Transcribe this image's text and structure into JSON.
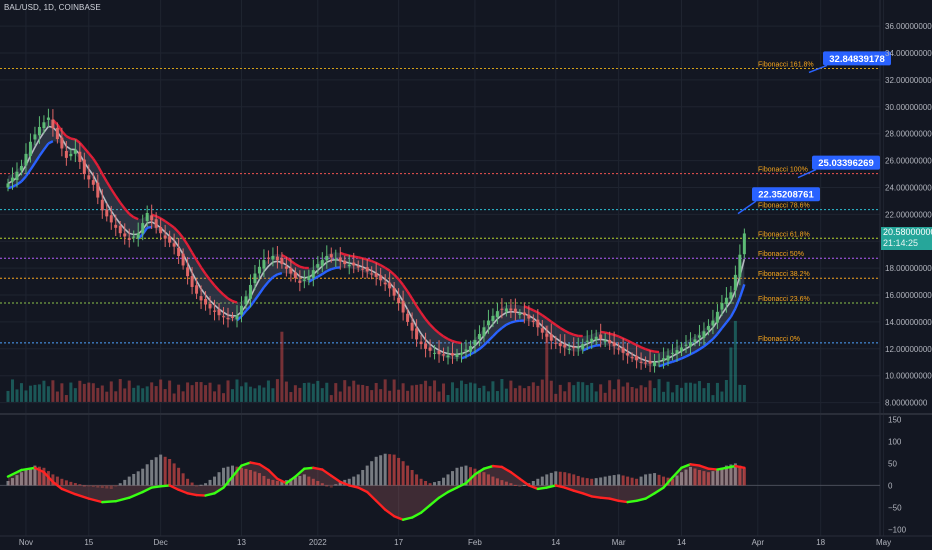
{
  "header": {
    "symbol": "BAL/USD, 1D, COINBASE"
  },
  "colors": {
    "background": "#131722",
    "grid": "#1f2430",
    "axis_text": "#b2b5be",
    "bull": "#26a69a",
    "bear": "#ef5350",
    "green_candle": "#5dbb75",
    "red_candle": "#e06666",
    "ribbon_red": "#e01e37",
    "ribbon_blue": "#2962ff",
    "ribbon_white": "#cfd2d8",
    "fib_label": "#f7a51c",
    "callout": "#2962ff",
    "osc_green": "#39ff14",
    "osc_red": "#ff2222",
    "hist_grey": "#8a8d93"
  },
  "current_price": {
    "value": "20.58000000",
    "countdown": "21:14:25"
  },
  "chart_data": [
    {
      "type": "candlestick",
      "y_axis": {
        "ylim": [
          7.3,
          37.2
        ],
        "ticks": [
          "36.00000000",
          "34.00000000",
          "32.00000000",
          "30.00000000",
          "28.00000000",
          "26.00000000",
          "24.00000000",
          "22.00000000",
          "20.00000000",
          "18.00000000",
          "16.00000000",
          "14.00000000",
          "12.00000000",
          "10.00000000",
          "8.00000000"
        ],
        "tick_values": [
          36,
          34,
          32,
          30,
          28,
          26,
          24,
          22,
          20,
          18,
          16,
          14,
          12,
          10,
          8
        ]
      },
      "x_axis": {
        "labels": [
          "Nov",
          "15",
          "Dec",
          "13",
          "2022",
          "17",
          "Feb",
          "14",
          "Mar",
          "14",
          "Apr",
          "18",
          "May"
        ],
        "label_days": [
          4,
          18,
          34,
          52,
          69,
          87,
          104,
          122,
          136,
          150,
          167,
          181,
          195
        ],
        "data_days": [
          0,
          164
        ]
      },
      "close_path": [
        [
          0,
          24.3
        ],
        [
          3,
          25.6
        ],
        [
          5,
          27.4
        ],
        [
          7,
          28.5
        ],
        [
          9,
          29.2
        ],
        [
          11,
          27.6
        ],
        [
          13,
          26.2
        ],
        [
          15,
          26.8
        ],
        [
          17,
          25.0
        ],
        [
          19,
          24.2
        ],
        [
          21,
          22.3
        ],
        [
          23,
          21.4
        ],
        [
          25,
          20.6
        ],
        [
          27,
          20.1
        ],
        [
          29,
          20.6
        ],
        [
          31,
          22.1
        ],
        [
          33,
          21.0
        ],
        [
          35,
          20.2
        ],
        [
          37,
          19.6
        ],
        [
          39,
          18.2
        ],
        [
          41,
          16.6
        ],
        [
          43,
          15.6
        ],
        [
          45,
          15.0
        ],
        [
          47,
          14.5
        ],
        [
          49,
          14.2
        ],
        [
          51,
          14.5
        ],
        [
          53,
          15.9
        ],
        [
          55,
          17.6
        ],
        [
          57,
          18.6
        ],
        [
          59,
          18.9
        ],
        [
          61,
          18.3
        ],
        [
          63,
          17.6
        ],
        [
          65,
          16.9
        ],
        [
          67,
          17.4
        ],
        [
          69,
          18.3
        ],
        [
          71,
          18.9
        ],
        [
          73,
          18.7
        ],
        [
          75,
          18.3
        ],
        [
          77,
          18.2
        ],
        [
          79,
          17.9
        ],
        [
          81,
          17.6
        ],
        [
          83,
          17.1
        ],
        [
          85,
          16.5
        ],
        [
          87,
          15.4
        ],
        [
          89,
          14.0
        ],
        [
          91,
          12.7
        ],
        [
          93,
          12.0
        ],
        [
          95,
          11.7
        ],
        [
          97,
          11.5
        ],
        [
          99,
          11.5
        ],
        [
          101,
          11.7
        ],
        [
          103,
          12.2
        ],
        [
          105,
          13.1
        ],
        [
          107,
          14.1
        ],
        [
          109,
          14.8
        ],
        [
          111,
          15.0
        ],
        [
          113,
          14.7
        ],
        [
          115,
          14.5
        ],
        [
          117,
          14.0
        ],
        [
          119,
          13.2
        ],
        [
          121,
          12.6
        ],
        [
          123,
          12.2
        ],
        [
          125,
          12.0
        ],
        [
          127,
          12.1
        ],
        [
          129,
          12.6
        ],
        [
          131,
          12.9
        ],
        [
          133,
          12.6
        ],
        [
          135,
          12.2
        ],
        [
          137,
          11.7
        ],
        [
          139,
          11.3
        ],
        [
          141,
          11.0
        ],
        [
          143,
          10.9
        ],
        [
          145,
          11.1
        ],
        [
          147,
          11.5
        ],
        [
          149,
          11.9
        ],
        [
          151,
          12.3
        ],
        [
          153,
          12.7
        ],
        [
          155,
          13.3
        ],
        [
          157,
          14.1
        ],
        [
          159,
          15.4
        ],
        [
          161,
          16.2
        ],
        [
          162,
          17.5
        ],
        [
          163,
          19.0
        ],
        [
          164,
          20.58
        ]
      ],
      "volume_spikes": [
        [
          61,
          15.6
        ],
        [
          120,
          17.0
        ],
        [
          161,
          12.1
        ],
        [
          162,
          18.0
        ]
      ],
      "fibonacci": [
        {
          "label": "Fibonacci 161.8%",
          "price": 32.85,
          "color": "#d4a017"
        },
        {
          "label": "Fibonacci 100%",
          "price": 25.03,
          "color": "#ef5350"
        },
        {
          "label": "Fibonacci 78.6%",
          "price": 22.35,
          "color": "#2bc0d4"
        },
        {
          "label": "Fibonacci 61.8%",
          "price": 20.22,
          "color": "#b8d72a"
        },
        {
          "label": "Fibonacci 50%",
          "price": 18.74,
          "color": "#b15cff"
        },
        {
          "label": "Fibonacci 38.2%",
          "price": 17.25,
          "color": "#f7a51c"
        },
        {
          "label": "Fibonacci 23.6%",
          "price": 15.41,
          "color": "#8bc34a"
        },
        {
          "label": "Fibonacci 0%",
          "price": 12.44,
          "color": "#4ea3ff"
        }
      ],
      "callouts": [
        {
          "text": "32.84839178",
          "price": 33.6,
          "anchor_price": 32.85
        },
        {
          "text": "25.03396269",
          "price": 25.85,
          "anchor_price": 25.03
        },
        {
          "text": "22.35208761",
          "price": 23.5,
          "anchor_price": 22.35
        }
      ]
    },
    {
      "type": "oscillator",
      "y_axis": {
        "ylim": [
          -115,
          160
        ],
        "ticks": [
          "150",
          "100",
          "50",
          "0",
          "−50",
          "−100"
        ],
        "tick_values": [
          150,
          100,
          50,
          0,
          -50,
          -100
        ]
      },
      "line_path": [
        [
          0,
          20
        ],
        [
          3,
          35
        ],
        [
          6,
          40
        ],
        [
          8,
          30
        ],
        [
          10,
          8
        ],
        [
          12,
          -8
        ],
        [
          15,
          -20
        ],
        [
          18,
          -30
        ],
        [
          21,
          -38
        ],
        [
          24,
          -36
        ],
        [
          27,
          -28
        ],
        [
          30,
          -15
        ],
        [
          32,
          -5
        ],
        [
          34,
          -2
        ],
        [
          36,
          0
        ],
        [
          38,
          -10
        ],
        [
          40,
          -18
        ],
        [
          42,
          -22
        ],
        [
          44,
          -23
        ],
        [
          46,
          -18
        ],
        [
          48,
          -5
        ],
        [
          50,
          20
        ],
        [
          52,
          45
        ],
        [
          54,
          52
        ],
        [
          56,
          48
        ],
        [
          58,
          35
        ],
        [
          60,
          15
        ],
        [
          62,
          5
        ],
        [
          64,
          20
        ],
        [
          66,
          38
        ],
        [
          68,
          40
        ],
        [
          70,
          36
        ],
        [
          72,
          22
        ],
        [
          74,
          8
        ],
        [
          76,
          0
        ],
        [
          78,
          -5
        ],
        [
          80,
          -15
        ],
        [
          82,
          -35
        ],
        [
          84,
          -55
        ],
        [
          86,
          -70
        ],
        [
          88,
          -78
        ],
        [
          90,
          -73
        ],
        [
          92,
          -62
        ],
        [
          94,
          -45
        ],
        [
          96,
          -28
        ],
        [
          98,
          -15
        ],
        [
          100,
          -5
        ],
        [
          102,
          5
        ],
        [
          104,
          25
        ],
        [
          106,
          38
        ],
        [
          108,
          44
        ],
        [
          110,
          42
        ],
        [
          112,
          30
        ],
        [
          114,
          15
        ],
        [
          116,
          0
        ],
        [
          118,
          -8
        ],
        [
          120,
          -5
        ],
        [
          122,
          0
        ],
        [
          124,
          -5
        ],
        [
          126,
          -12
        ],
        [
          128,
          -18
        ],
        [
          130,
          -25
        ],
        [
          132,
          -28
        ],
        [
          134,
          -30
        ],
        [
          136,
          -35
        ],
        [
          138,
          -38
        ],
        [
          140,
          -35
        ],
        [
          142,
          -30
        ],
        [
          144,
          -18
        ],
        [
          146,
          -5
        ],
        [
          148,
          18
        ],
        [
          150,
          40
        ],
        [
          152,
          48
        ],
        [
          154,
          45
        ],
        [
          156,
          38
        ],
        [
          158,
          36
        ],
        [
          160,
          40
        ],
        [
          162,
          44
        ],
        [
          164,
          40
        ]
      ],
      "histogram_path": [
        [
          0,
          10
        ],
        [
          3,
          30
        ],
        [
          6,
          45
        ],
        [
          8,
          40
        ],
        [
          10,
          25
        ],
        [
          12,
          15
        ],
        [
          14,
          8
        ],
        [
          17,
          0
        ],
        [
          20,
          -5
        ],
        [
          23,
          -8
        ],
        [
          25,
          5
        ],
        [
          27,
          20
        ],
        [
          30,
          38
        ],
        [
          32,
          58
        ],
        [
          34,
          70
        ],
        [
          36,
          60
        ],
        [
          38,
          40
        ],
        [
          40,
          15
        ],
        [
          42,
          -2
        ],
        [
          44,
          5
        ],
        [
          46,
          20
        ],
        [
          48,
          40
        ],
        [
          50,
          45
        ],
        [
          52,
          40
        ],
        [
          54,
          35
        ],
        [
          56,
          28
        ],
        [
          58,
          15
        ],
        [
          60,
          10
        ],
        [
          62,
          12
        ],
        [
          64,
          18
        ],
        [
          66,
          25
        ],
        [
          68,
          15
        ],
        [
          70,
          5
        ],
        [
          72,
          -5
        ],
        [
          74,
          10
        ],
        [
          76,
          15
        ],
        [
          78,
          25
        ],
        [
          80,
          45
        ],
        [
          82,
          65
        ],
        [
          84,
          72
        ],
        [
          86,
          70
        ],
        [
          88,
          55
        ],
        [
          90,
          35
        ],
        [
          92,
          15
        ],
        [
          94,
          5
        ],
        [
          96,
          10
        ],
        [
          98,
          25
        ],
        [
          100,
          40
        ],
        [
          102,
          45
        ],
        [
          104,
          38
        ],
        [
          106,
          30
        ],
        [
          108,
          20
        ],
        [
          110,
          12
        ],
        [
          112,
          5
        ],
        [
          114,
          -3
        ],
        [
          116,
          5
        ],
        [
          118,
          15
        ],
        [
          120,
          25
        ],
        [
          122,
          32
        ],
        [
          124,
          30
        ],
        [
          126,
          25
        ],
        [
          128,
          18
        ],
        [
          130,
          15
        ],
        [
          132,
          18
        ],
        [
          134,
          22
        ],
        [
          136,
          25
        ],
        [
          138,
          20
        ],
        [
          140,
          15
        ],
        [
          142,
          25
        ],
        [
          144,
          28
        ],
        [
          146,
          20
        ],
        [
          148,
          15
        ],
        [
          150,
          30
        ],
        [
          152,
          42
        ],
        [
          154,
          35
        ],
        [
          156,
          30
        ],
        [
          158,
          35
        ],
        [
          160,
          45
        ],
        [
          162,
          50
        ],
        [
          164,
          40
        ]
      ]
    }
  ]
}
